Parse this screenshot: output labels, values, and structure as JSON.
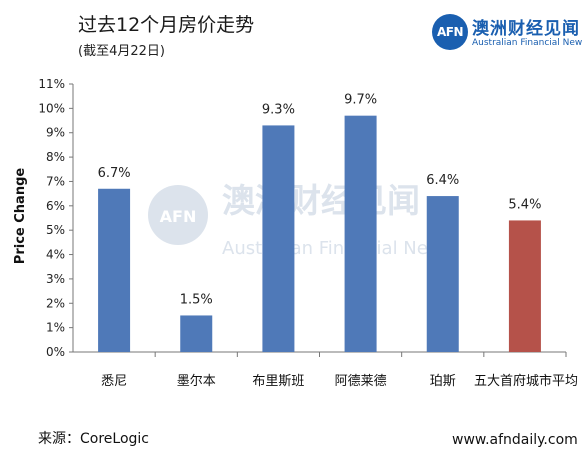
{
  "header": {
    "title": "过去12个月房价走势",
    "subtitle": "(截至4月22日)"
  },
  "brand": {
    "logo_text": "AFN",
    "name_cn": "澳洲财经见闻",
    "name_en": "Australian Financial News",
    "color": "#1a5fb0"
  },
  "watermark": {
    "logo_text": "AFN",
    "name_cn": "澳洲财经见闻",
    "name_en": "Australian Financial News"
  },
  "footer": {
    "source": "来源：CoreLogic",
    "url": "www.afndaily.com"
  },
  "chart_data": {
    "type": "bar",
    "title": "过去12个月房价走势",
    "subtitle": "(截至4月22日)",
    "ylabel": "Price Change",
    "xlabel": "",
    "categories": [
      "悉尼",
      "墨尔本",
      "布里斯班",
      "阿德莱德",
      "珀斯",
      "五大首府城市平均"
    ],
    "values": [
      6.7,
      1.5,
      9.3,
      9.7,
      6.4,
      5.4
    ],
    "value_labels": [
      "6.7%",
      "1.5%",
      "9.3%",
      "9.7%",
      "6.4%",
      "5.4%"
    ],
    "colors": [
      "#4f79b8",
      "#4f79b8",
      "#4f79b8",
      "#4f79b8",
      "#4f79b8",
      "#b5524a"
    ],
    "ylim": [
      0,
      11
    ],
    "yticks": [
      "0%",
      "1%",
      "2%",
      "3%",
      "4%",
      "5%",
      "6%",
      "7%",
      "8%",
      "9%",
      "10%",
      "11%"
    ],
    "grid": false,
    "legend": "none"
  }
}
